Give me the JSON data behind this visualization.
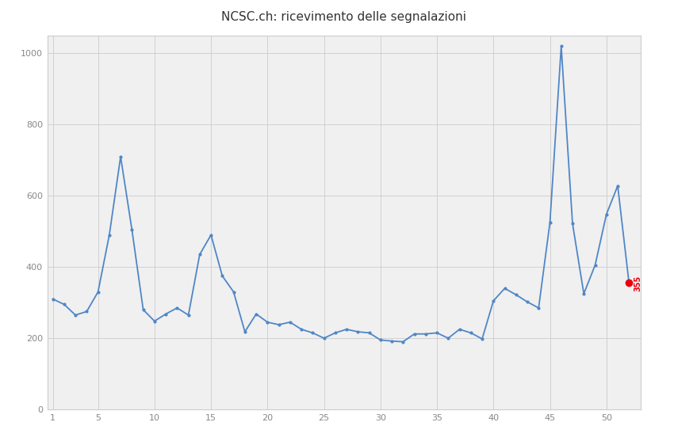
{
  "title": "NCSC.ch: ricevimento delle segnalazioni",
  "title_fontsize": 11,
  "line_color": "#4f86c6",
  "bg_color": "#ffffff",
  "plot_bg_color": "#f0f0f0",
  "grid_color": "#cccccc",
  "spine_color": "#cccccc",
  "tick_color": "#888888",
  "annotation_color": "#e8000d",
  "annotation_label": "355",
  "annotation_fontsize": 7,
  "weeks": [
    1,
    2,
    3,
    4,
    5,
    6,
    7,
    8,
    9,
    10,
    11,
    12,
    13,
    14,
    15,
    16,
    17,
    18,
    19,
    20,
    21,
    22,
    23,
    24,
    25,
    26,
    27,
    28,
    29,
    30,
    31,
    32,
    33,
    34,
    35,
    36,
    37,
    38,
    39,
    40,
    41,
    42,
    43,
    44,
    45,
    46,
    47,
    48,
    49,
    50,
    51,
    52
  ],
  "values": [
    310,
    295,
    265,
    275,
    330,
    490,
    710,
    505,
    280,
    248,
    268,
    285,
    265,
    435,
    490,
    375,
    330,
    218,
    268,
    245,
    238,
    245,
    225,
    215,
    200,
    215,
    225,
    218,
    215,
    195,
    192,
    190,
    212,
    212,
    215,
    200,
    225,
    215,
    198,
    305,
    340,
    322,
    302,
    285,
    525,
    1020,
    522,
    325,
    405,
    548,
    628,
    355
  ],
  "xlim": [
    0.5,
    53
  ],
  "ylim": [
    0,
    1050
  ],
  "yticks": [
    0,
    200,
    400,
    600,
    800,
    1000
  ],
  "xticks": [
    1,
    5,
    10,
    15,
    20,
    25,
    30,
    35,
    40,
    45,
    50
  ]
}
